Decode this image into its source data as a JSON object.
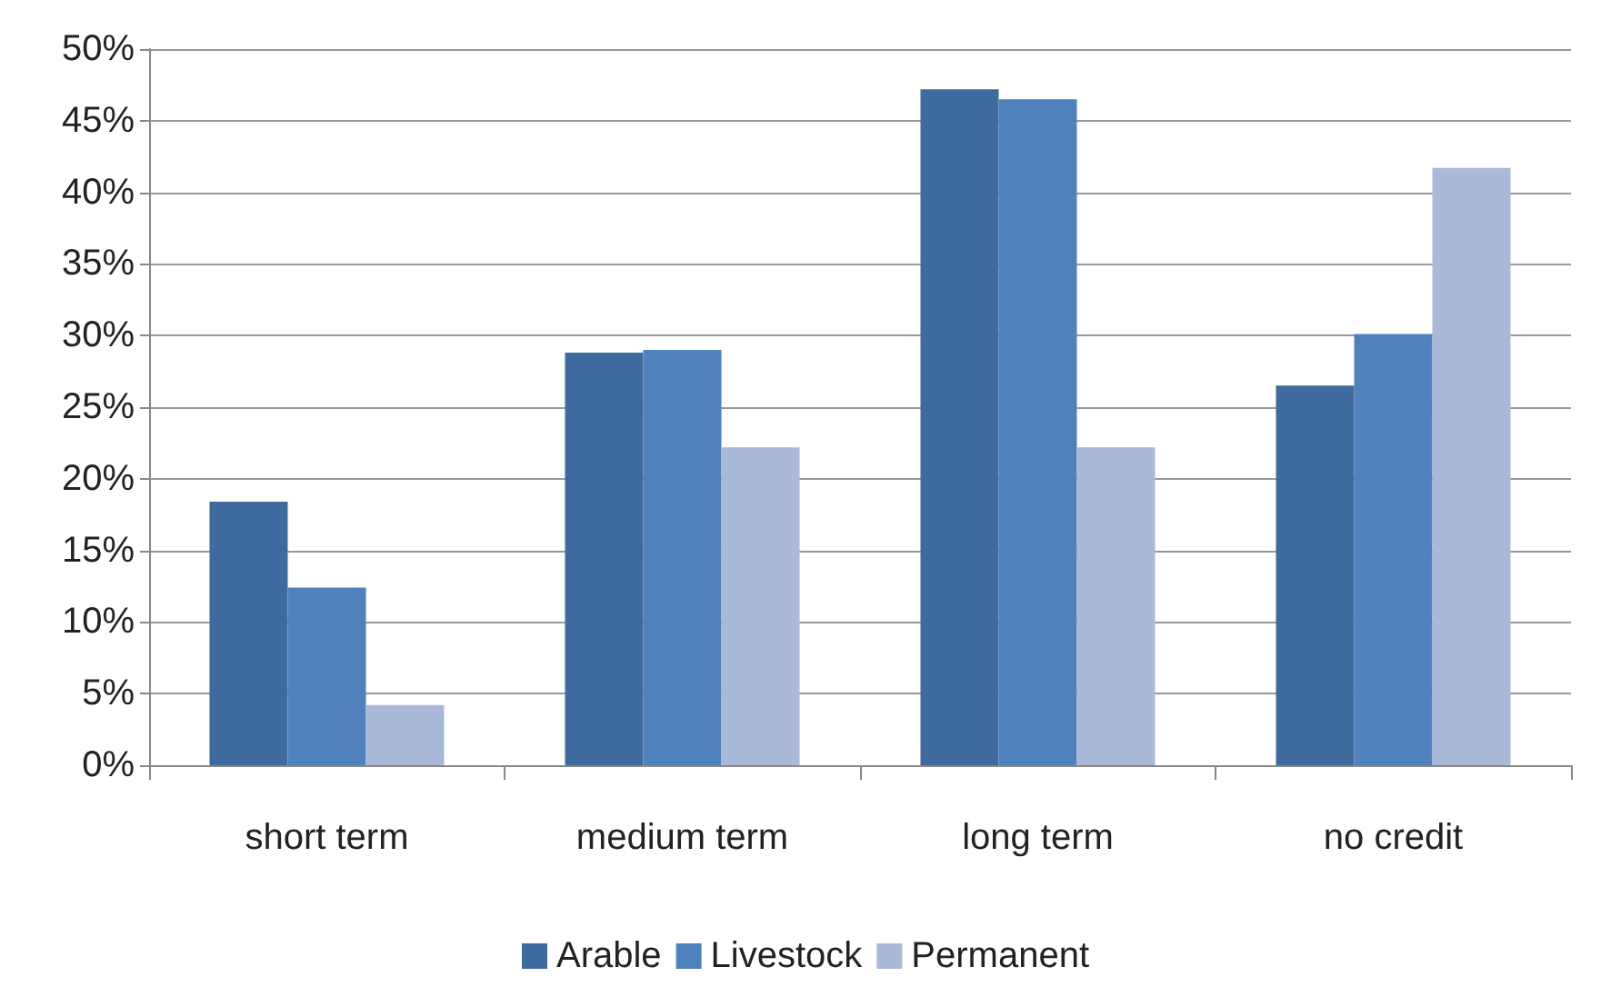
{
  "chart_data": {
    "type": "bar",
    "categories": [
      "short term",
      "medium term",
      "long term",
      "no credit"
    ],
    "series": [
      {
        "name": "Arable",
        "color": "#3f6a9e",
        "values": [
          18.4,
          28.8,
          47.2,
          26.5
        ]
      },
      {
        "name": "Livestock",
        "color": "#4f81bd",
        "values": [
          12.4,
          29.0,
          46.5,
          30.1
        ]
      },
      {
        "name": "Permanent",
        "color": "#aab9d8",
        "values": [
          4.2,
          22.2,
          22.2,
          41.7
        ]
      }
    ],
    "ylim": [
      0,
      50
    ],
    "yticks": [
      {
        "value": 0,
        "label": "0%"
      },
      {
        "value": 5,
        "label": "5%"
      },
      {
        "value": 10,
        "label": "10%"
      },
      {
        "value": 15,
        "label": "15%"
      },
      {
        "value": 20,
        "label": "20%"
      },
      {
        "value": 25,
        "label": "25%"
      },
      {
        "value": 30,
        "label": "30%"
      },
      {
        "value": 35,
        "label": "35%"
      },
      {
        "value": 40,
        "label": "40%"
      },
      {
        "value": 45,
        "label": "45%"
      },
      {
        "value": 50,
        "label": "50%"
      }
    ],
    "grid": "y",
    "legend": "bottom"
  }
}
